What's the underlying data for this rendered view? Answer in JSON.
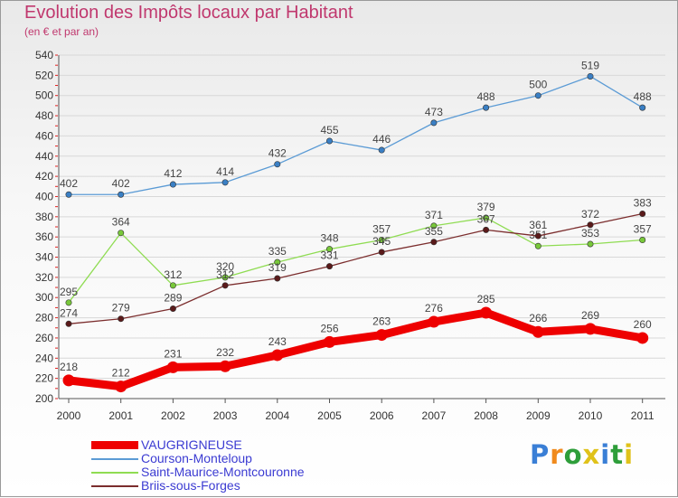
{
  "chart_data": {
    "type": "line",
    "title": "Evolution des Impôts locaux par Habitant",
    "subtitle": "(en € et par an)",
    "xlabel": "",
    "ylabel": "",
    "ylim": [
      200,
      540
    ],
    "yticks": [
      200,
      220,
      240,
      260,
      280,
      300,
      320,
      340,
      360,
      380,
      400,
      420,
      440,
      460,
      480,
      500,
      520,
      540
    ],
    "categories": [
      "2000",
      "2001",
      "2002",
      "2003",
      "2004",
      "2005",
      "2006",
      "2007",
      "2008",
      "2009",
      "2010",
      "2011"
    ],
    "legend_position": "bottom-left",
    "series": [
      {
        "name": "Courson-Monteloup",
        "color": "#5b9bd5",
        "dot": "#3a7fc4",
        "values": [
          402,
          402,
          412,
          414,
          432,
          455,
          446,
          473,
          488,
          500,
          519,
          488
        ]
      },
      {
        "name": "Saint-Maurice-Montcouronne",
        "color": "#8fdc52",
        "dot": "#78c83a",
        "values": [
          295,
          364,
          312,
          320,
          335,
          348,
          357,
          371,
          379,
          351,
          353,
          357
        ]
      },
      {
        "name": "Briis-sous-Forges",
        "color": "#7b2d2d",
        "dot": "#5a1a1a",
        "values": [
          274,
          279,
          289,
          312,
          319,
          331,
          345,
          355,
          367,
          361,
          372,
          383
        ]
      },
      {
        "name": "VAUGRIGNEUSE",
        "color": "#ee0000",
        "dot": "#ee0000",
        "values": [
          218,
          212,
          231,
          232,
          243,
          256,
          263,
          276,
          285,
          266,
          269,
          260
        ]
      }
    ],
    "legend": [
      {
        "name": "VAUGRIGNEUSE",
        "color": "#ee0000"
      },
      {
        "name": "Courson-Monteloup",
        "color": "#5b9bd5"
      },
      {
        "name": "Saint-Maurice-Montcouronne",
        "color": "#8fdc52"
      },
      {
        "name": "Briis-sous-Forges",
        "color": "#7b2d2d"
      }
    ]
  },
  "logo": {
    "letters": [
      "P",
      "r",
      "o",
      "x",
      "i",
      "t",
      "i"
    ],
    "colors": [
      "#3a7fd6",
      "#f08a1c",
      "#2e9e3a",
      "#e0c21a",
      "#3a7fd6",
      "#2e9e3a",
      "#e0c21a"
    ]
  }
}
